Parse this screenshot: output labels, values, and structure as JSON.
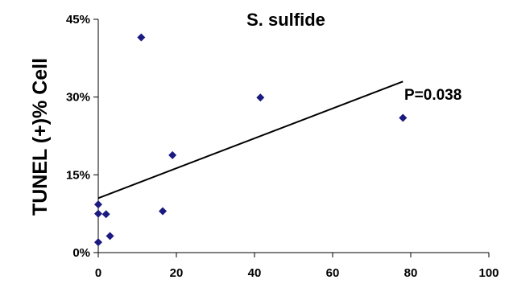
{
  "chart_data": {
    "type": "scatter",
    "title": "S. sulfide",
    "xlabel": "",
    "ylabel": "TUNEL (+)% Cell",
    "xlim": [
      0,
      100
    ],
    "ylim": [
      0,
      45
    ],
    "x_ticks": [
      "0",
      "20",
      "40",
      "60",
      "80",
      "100"
    ],
    "y_ticks": [
      "0%",
      "15%",
      "30%",
      "45%"
    ],
    "grid": false,
    "legend": "none",
    "marker_color": "#1a1a80",
    "series": [
      {
        "x": [
          0,
          0,
          0,
          2,
          3,
          11,
          16.5,
          19,
          41.5,
          78
        ],
        "y": [
          9.3,
          7.5,
          2.0,
          7.4,
          3.2,
          41.5,
          8.0,
          18.8,
          29.9,
          26.0
        ]
      }
    ],
    "trendline": {
      "x": [
        0,
        78
      ],
      "y": [
        10.5,
        33.0
      ]
    },
    "annotations": [
      "P=0.038"
    ]
  }
}
